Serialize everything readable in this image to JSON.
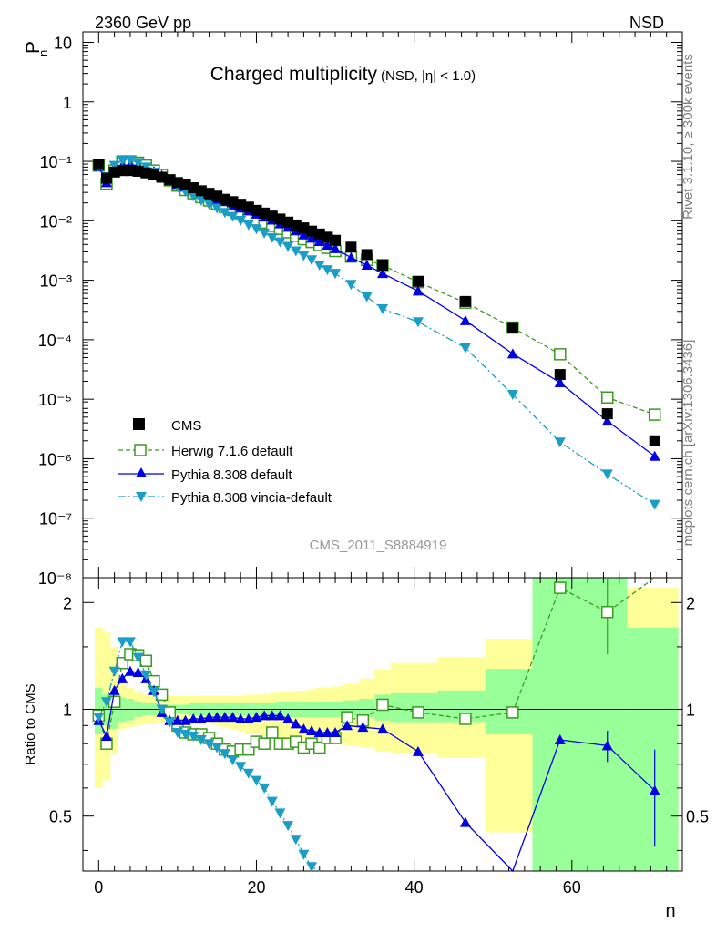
{
  "header": {
    "left": "2360 GeV pp",
    "right": "NSD"
  },
  "side_labels": {
    "rivet": "Rivet 3.1.10, ≥ 300k events",
    "mcplots": "mcplots.cern.ch [arXiv:1306.3436]"
  },
  "chart_data": [
    {
      "type": "scatter",
      "title_main": "Charged multiplicity",
      "title_sub": "(NSD, |η| < 1.0)",
      "watermark": "CMS_2011_S8884919",
      "ylabel": "P",
      "ylabel_sub": "n",
      "yscale": "log",
      "xlim": [
        -2,
        74
      ],
      "ylim": [
        1e-08,
        15
      ],
      "y_tick_labels": [
        "10⁻⁸",
        "10⁻⁷",
        "10⁻⁶",
        "10⁻⁵",
        "10⁻⁴",
        "10⁻³",
        "10⁻²",
        "10⁻¹",
        "1",
        "10"
      ],
      "legend_position": "lower-left",
      "series": [
        {
          "name": "CMS",
          "color": "#000000",
          "marker": "square-filled",
          "x": [
            0,
            1,
            2,
            3,
            4,
            5,
            6,
            7,
            8,
            9,
            10,
            11,
            12,
            13,
            14,
            15,
            16,
            17,
            18,
            19,
            20,
            21,
            22,
            23,
            24,
            25,
            26,
            27,
            28,
            29,
            30,
            32,
            34,
            36,
            40.5,
            46.5,
            52.5,
            58.5,
            64.5,
            70.5
          ],
          "y": [
            0.089,
            0.052,
            0.066,
            0.07,
            0.07,
            0.068,
            0.064,
            0.059,
            0.054,
            0.049,
            0.044,
            0.04,
            0.036,
            0.032,
            0.029,
            0.026,
            0.023,
            0.021,
            0.019,
            0.017,
            0.015,
            0.0135,
            0.012,
            0.0107,
            0.0095,
            0.0085,
            0.0076,
            0.0067,
            0.006,
            0.0053,
            0.0047,
            0.0036,
            0.0027,
            0.0018,
            0.00096,
            0.00044,
            0.00016,
            2.6e-05,
            5.7e-06,
            2e-06
          ]
        },
        {
          "name": "Herwig 7.1.6 default",
          "color": "#3a9a22",
          "marker": "square-open",
          "x": [
            0,
            1,
            2,
            3,
            4,
            5,
            6,
            7,
            8,
            9,
            10,
            11,
            12,
            13,
            14,
            15,
            16,
            17,
            18,
            19,
            20,
            21,
            22,
            23,
            24,
            25,
            26,
            27,
            28,
            29,
            30,
            32,
            34,
            36,
            40.5,
            46.5,
            52.5,
            58.5,
            64.5,
            70.5
          ],
          "y": [
            0.085,
            0.042,
            0.07,
            0.1,
            0.1,
            0.095,
            0.085,
            0.07,
            0.059,
            0.048,
            0.039,
            0.033,
            0.029,
            0.025,
            0.022,
            0.0195,
            0.0171,
            0.0152,
            0.0134,
            0.0119,
            0.0105,
            0.0093,
            0.0082,
            0.0073,
            0.0064,
            0.0056,
            0.0049,
            0.0044,
            0.0039,
            0.0035,
            0.0031,
            0.0025,
            0.0022,
            0.0018,
            0.00093,
            0.00042,
            0.00016,
            5.7e-05,
            1.07e-05,
            5.5e-06
          ]
        },
        {
          "name": "Pythia 8.308 default",
          "color": "#0000e6",
          "marker": "triangle-up",
          "x": [
            0,
            1,
            2,
            3,
            4,
            5,
            6,
            7,
            8,
            9,
            10,
            11,
            12,
            13,
            14,
            15,
            16,
            17,
            18,
            19,
            20,
            21,
            22,
            23,
            24,
            25,
            26,
            27,
            28,
            29,
            30,
            32,
            34,
            36,
            40.5,
            46.5,
            52.5,
            58.5,
            64.5,
            70.5
          ],
          "y": [
            0.082,
            0.044,
            0.075,
            0.085,
            0.088,
            0.085,
            0.077,
            0.068,
            0.058,
            0.047,
            0.041,
            0.037,
            0.033,
            0.03,
            0.026,
            0.023,
            0.021,
            0.018,
            0.0164,
            0.0147,
            0.013,
            0.0116,
            0.0103,
            0.0089,
            0.0078,
            0.0068,
            0.0058,
            0.0051,
            0.0045,
            0.0039,
            0.0034,
            0.0024,
            0.0018,
            0.0013,
            0.00066,
            0.00021,
            5.8e-05,
            1.9e-05,
            4.3e-06,
            1.1e-06
          ]
        },
        {
          "name": "Pythia 8.308 vincia-default",
          "color": "#1a9ec8",
          "marker": "triangle-down",
          "x": [
            0,
            1,
            2,
            3,
            4,
            5,
            6,
            7,
            8,
            9,
            10,
            11,
            12,
            13,
            14,
            15,
            16,
            17,
            18,
            19,
            20,
            21,
            22,
            23,
            24,
            25,
            26,
            27,
            28,
            29,
            30,
            32,
            34,
            36,
            40.5,
            46.5,
            52.5,
            58.5,
            64.5,
            70.5
          ],
          "y": [
            0.083,
            0.055,
            0.085,
            0.105,
            0.105,
            0.095,
            0.08,
            0.066,
            0.054,
            0.045,
            0.037,
            0.031,
            0.026,
            0.022,
            0.019,
            0.0162,
            0.0138,
            0.0118,
            0.0101,
            0.0086,
            0.0073,
            0.0062,
            0.0052,
            0.0044,
            0.0037,
            0.0031,
            0.0026,
            0.0022,
            0.0018,
            0.0015,
            0.0013,
            0.00085,
            0.00053,
            0.00033,
            0.0002,
            7.3e-05,
            1.2e-05,
            1.9e-06,
            5.5e-07,
            1.7e-07
          ]
        }
      ]
    },
    {
      "type": "line",
      "ylabel": "Ratio to CMS",
      "xlabel": "n",
      "xlim": [
        -2,
        74
      ],
      "ylim": [
        0.35,
        2.35
      ],
      "x_ticks": [
        0,
        20,
        40,
        60
      ],
      "y_ticks": [
        0.5,
        1,
        2
      ],
      "bands": {
        "stat_color": "#99ff99",
        "syst_color": "#ffff99",
        "x_edges": [
          -0.5,
          0.5,
          1.5,
          2.5,
          3.5,
          4.5,
          5.5,
          6.5,
          7.5,
          8.5,
          9.5,
          10.5,
          11.5,
          12.5,
          13.5,
          14.5,
          15.5,
          16.5,
          17.5,
          18.5,
          19.5,
          20.5,
          21.5,
          22.5,
          23.5,
          24.5,
          25.5,
          26.5,
          27.5,
          28.5,
          29.5,
          31,
          33,
          35,
          37,
          43,
          49,
          55,
          61,
          67,
          73.5
        ],
        "inner_lo": [
          0.85,
          0.9,
          0.88,
          0.92,
          0.93,
          0.95,
          0.96,
          0.96,
          0.97,
          0.97,
          0.97,
          0.97,
          0.96,
          0.96,
          0.96,
          0.96,
          0.96,
          0.96,
          0.96,
          0.96,
          0.96,
          0.96,
          0.96,
          0.95,
          0.95,
          0.95,
          0.95,
          0.95,
          0.95,
          0.95,
          0.95,
          0.95,
          0.95,
          0.93,
          0.92,
          0.92,
          0.85,
          0.35,
          0.35,
          0.35
        ],
        "inner_hi": [
          1.15,
          1.1,
          1.12,
          1.08,
          1.07,
          1.05,
          1.04,
          1.04,
          1.03,
          1.03,
          1.03,
          1.03,
          1.04,
          1.04,
          1.04,
          1.04,
          1.04,
          1.04,
          1.04,
          1.04,
          1.04,
          1.04,
          1.04,
          1.05,
          1.05,
          1.05,
          1.05,
          1.05,
          1.05,
          1.05,
          1.05,
          1.06,
          1.07,
          1.1,
          1.11,
          1.13,
          1.3,
          2.35,
          2.35,
          1.7
        ],
        "outer_lo": [
          0.6,
          0.63,
          0.75,
          0.88,
          0.89,
          0.9,
          0.91,
          0.91,
          0.92,
          0.92,
          0.92,
          0.92,
          0.91,
          0.91,
          0.91,
          0.9,
          0.89,
          0.88,
          0.87,
          0.86,
          0.85,
          0.84,
          0.83,
          0.83,
          0.82,
          0.82,
          0.82,
          0.82,
          0.82,
          0.82,
          0.8,
          0.79,
          0.78,
          0.76,
          0.75,
          0.73,
          0.45,
          0.35,
          0.35,
          0.35
        ],
        "outer_hi": [
          1.7,
          1.65,
          1.5,
          1.2,
          1.15,
          1.12,
          1.1,
          1.1,
          1.09,
          1.09,
          1.09,
          1.09,
          1.09,
          1.09,
          1.09,
          1.09,
          1.09,
          1.09,
          1.09,
          1.1,
          1.1,
          1.1,
          1.11,
          1.12,
          1.12,
          1.13,
          1.13,
          1.14,
          1.15,
          1.15,
          1.16,
          1.18,
          1.22,
          1.3,
          1.35,
          1.4,
          1.58,
          2.35,
          2.35,
          2.2
        ]
      },
      "series": [
        {
          "name": "Herwig 7.1.6 default",
          "color": "#3a9a22",
          "x": [
            0,
            1,
            2,
            3,
            4,
            5,
            6,
            7,
            8,
            9,
            10,
            11,
            12,
            13,
            14,
            15,
            16,
            17,
            18,
            19,
            20,
            21,
            22,
            23,
            24,
            25,
            26,
            27,
            28,
            29,
            30,
            31.5,
            33.5,
            36,
            40.5,
            46.5,
            52.5,
            58.5,
            64.5,
            70.5
          ],
          "y": [
            0.96,
            0.8,
            1.05,
            1.35,
            1.43,
            1.42,
            1.37,
            1.2,
            1.1,
            0.98,
            0.9,
            0.86,
            0.85,
            0.85,
            0.83,
            0.8,
            0.77,
            0.76,
            0.77,
            0.77,
            0.81,
            0.8,
            0.86,
            0.8,
            0.8,
            0.81,
            0.78,
            0.8,
            0.78,
            0.83,
            0.83,
            0.95,
            0.93,
            1.03,
            0.98,
            0.94,
            0.98,
            2.2,
            1.88,
            2.5
          ],
          "err": [
            0.03,
            0.03,
            0.03,
            0.03,
            0.02,
            0.02,
            0.02,
            0.02,
            0.02,
            0.02,
            0.02,
            0.02,
            0.02,
            0.02,
            0.02,
            0.02,
            0.02,
            0.02,
            0.02,
            0.02,
            0.02,
            0.02,
            0.02,
            0.02,
            0.02,
            0.02,
            0.02,
            0.02,
            0.02,
            0.02,
            0.02,
            0.02,
            0.02,
            0.02,
            0.02,
            0.03,
            0.04,
            0.08,
            0.45,
            0.4
          ]
        },
        {
          "name": "Pythia 8.308 default",
          "color": "#0000e6",
          "x": [
            0,
            1,
            2,
            3,
            4,
            5,
            6,
            7,
            8,
            9,
            10,
            11,
            12,
            13,
            14,
            15,
            16,
            17,
            18,
            19,
            20,
            21,
            22,
            23,
            24,
            25,
            26,
            27,
            28,
            29,
            30,
            31.5,
            33.5,
            36,
            40.5,
            46.5,
            52.5,
            58.5,
            64.5,
            70.5
          ],
          "y": [
            0.93,
            0.84,
            1.13,
            1.22,
            1.28,
            1.27,
            1.22,
            1.13,
            0.98,
            0.93,
            0.93,
            0.93,
            0.94,
            0.94,
            0.95,
            0.95,
            0.95,
            0.95,
            0.94,
            0.94,
            0.95,
            0.96,
            0.96,
            0.96,
            0.94,
            0.91,
            0.88,
            0.87,
            0.86,
            0.86,
            0.86,
            0.9,
            0.89,
            0.88,
            0.76,
            0.48,
            0.34,
            0.82,
            0.79,
            0.59
          ],
          "err": [
            0.02,
            0.02,
            0.02,
            0.02,
            0.02,
            0.02,
            0.02,
            0.02,
            0.02,
            0.02,
            0.02,
            0.02,
            0.02,
            0.02,
            0.02,
            0.02,
            0.02,
            0.02,
            0.02,
            0.02,
            0.02,
            0.02,
            0.02,
            0.02,
            0.02,
            0.02,
            0.02,
            0.02,
            0.02,
            0.02,
            0.02,
            0.02,
            0.02,
            0.02,
            0.02,
            0.02,
            0.03,
            0.04,
            0.08,
            0.18
          ]
        },
        {
          "name": "Pythia 8.308 vincia-default",
          "color": "#1a9ec8",
          "x": [
            0,
            1,
            2,
            3,
            4,
            5,
            6,
            7,
            8,
            9,
            10,
            11,
            12,
            13,
            14,
            15,
            16,
            17,
            18,
            19,
            20,
            21,
            22,
            23,
            24,
            25,
            26,
            27,
            28
          ],
          "y": [
            0.95,
            1.05,
            1.28,
            1.55,
            1.55,
            1.4,
            1.25,
            1.12,
            1.0,
            0.92,
            0.86,
            0.85,
            0.84,
            0.82,
            0.8,
            0.78,
            0.75,
            0.72,
            0.69,
            0.66,
            0.63,
            0.6,
            0.55,
            0.51,
            0.47,
            0.43,
            0.39,
            0.36,
            0.33
          ]
        }
      ],
      "reference_line": 1
    }
  ]
}
